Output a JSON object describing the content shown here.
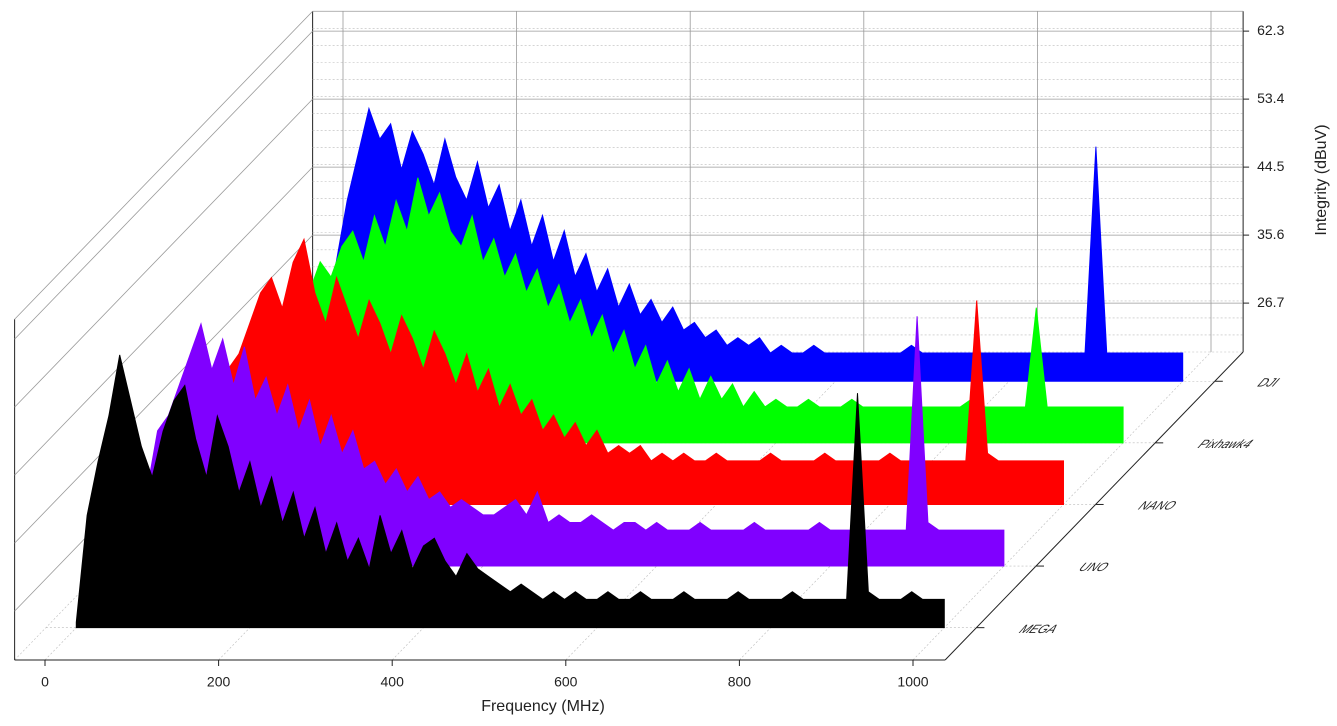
{
  "chart_data": {
    "type": "waterfall",
    "xlabel": "Frequency (MHz)",
    "ylabel": "Integrity (dBuV)",
    "xlim": [
      -35,
      1037
    ],
    "xticks": [
      0,
      200,
      400,
      600,
      800,
      1000
    ],
    "ylim": [
      20.3,
      64.9
    ],
    "yticks": [
      26.7,
      35.6,
      44.5,
      53.4,
      62.3
    ],
    "grid": true,
    "x": [
      0,
      12.5,
      25,
      37.5,
      50,
      62.5,
      75,
      87.5,
      100,
      112.5,
      125,
      137.5,
      150,
      162.5,
      175,
      187.5,
      200,
      212.5,
      225,
      237.5,
      250,
      262.5,
      275,
      287.5,
      300,
      312.5,
      325,
      337.5,
      350,
      362.5,
      375,
      387.5,
      400,
      412.5,
      425,
      437.5,
      450,
      462.5,
      475,
      487.5,
      500,
      512.5,
      525,
      537.5,
      550,
      562.5,
      575,
      587.5,
      600,
      612.5,
      625,
      637.5,
      650,
      662.5,
      675,
      687.5,
      700,
      712.5,
      725,
      737.5,
      750,
      762.5,
      775,
      787.5,
      800,
      812.5,
      825,
      837.5,
      850,
      862.5,
      875,
      887.5,
      900,
      912.5,
      925,
      937.5,
      950,
      962.5,
      975,
      987.5,
      1000
    ],
    "series": [
      {
        "name": "MEGA",
        "color": "#000000",
        "values": [
          21,
          35,
          42,
          48,
          56,
          50,
          44,
          40,
          46,
          50,
          52,
          45,
          40,
          48,
          44,
          38,
          42,
          36,
          40,
          34,
          38,
          32,
          36,
          30,
          34,
          29,
          32,
          28,
          35,
          30,
          33,
          28,
          31,
          32,
          29,
          27,
          30,
          28,
          27,
          26,
          25,
          26,
          25,
          24,
          25,
          24,
          25,
          24,
          24,
          25,
          24,
          24,
          25,
          24,
          24,
          24,
          25,
          24,
          24,
          24,
          24,
          25,
          24,
          24,
          24,
          24,
          25,
          24,
          24,
          24,
          24,
          24,
          51,
          25,
          24,
          24,
          24,
          25,
          24,
          24,
          24
        ]
      },
      {
        "name": "UNO",
        "color": "#8000ff",
        "values": [
          21,
          30,
          38,
          40,
          44,
          48,
          52,
          46,
          50,
          44,
          49,
          42,
          45,
          40,
          44,
          38,
          42,
          36,
          40,
          35,
          38,
          33,
          34,
          31,
          33,
          30,
          32,
          29,
          30,
          28,
          29,
          28,
          27,
          27,
          28,
          29,
          27,
          30,
          26,
          27,
          26,
          26,
          27,
          26,
          25,
          26,
          26,
          25,
          26,
          25,
          25,
          25,
          26,
          25,
          25,
          25,
          25,
          26,
          25,
          25,
          25,
          25,
          25,
          26,
          25,
          25,
          25,
          25,
          25,
          25,
          25,
          25,
          53,
          26,
          25,
          25,
          25,
          25,
          25,
          25,
          25
        ]
      },
      {
        "name": "NANO",
        "color": "#ff0000",
        "values": [
          21,
          28,
          34,
          38,
          40,
          44,
          48,
          50,
          46,
          52,
          55,
          48,
          44,
          50,
          46,
          42,
          47,
          44,
          40,
          45,
          42,
          38,
          43,
          40,
          36,
          40,
          35,
          38,
          33,
          36,
          32,
          34,
          30,
          32,
          29,
          31,
          28,
          30,
          27,
          28,
          27,
          28,
          26,
          27,
          26,
          27,
          26,
          26,
          27,
          26,
          26,
          26,
          26,
          27,
          26,
          26,
          26,
          26,
          27,
          26,
          26,
          26,
          26,
          26,
          27,
          26,
          26,
          26,
          26,
          26,
          26,
          26,
          47,
          27,
          26,
          26,
          26,
          26,
          26,
          26,
          26
        ]
      },
      {
        "name": "Pixhawk4",
        "color": "#00ff00",
        "values": [
          21,
          26,
          30,
          34,
          38,
          40,
          44,
          42,
          46,
          48,
          44,
          50,
          46,
          52,
          48,
          55,
          50,
          53,
          48,
          46,
          50,
          44,
          47,
          42,
          45,
          40,
          43,
          38,
          41,
          36,
          39,
          34,
          37,
          32,
          35,
          30,
          33,
          28,
          31,
          27,
          30,
          26,
          29,
          26,
          28,
          25,
          27,
          25,
          26,
          25,
          25,
          26,
          25,
          25,
          25,
          26,
          25,
          25,
          25,
          25,
          25,
          25,
          25,
          25,
          25,
          25,
          26,
          25,
          25,
          25,
          25,
          25,
          38,
          25,
          25,
          25,
          25,
          25,
          25,
          25,
          25
        ]
      },
      {
        "name": "DJI",
        "color": "#0000ff",
        "values": [
          21,
          28,
          36,
          44,
          50,
          56,
          52,
          54,
          48,
          53,
          50,
          46,
          52,
          47,
          44,
          49,
          43,
          46,
          40,
          44,
          38,
          42,
          36,
          40,
          34,
          37,
          32,
          35,
          30,
          33,
          29,
          31,
          28,
          30,
          27,
          28,
          26,
          27,
          25,
          26,
          25,
          26,
          24,
          25,
          24,
          24,
          25,
          24,
          24,
          24,
          24,
          24,
          24,
          24,
          24,
          25,
          24,
          24,
          24,
          24,
          24,
          24,
          24,
          24,
          24,
          24,
          24,
          24,
          24,
          24,
          24,
          24,
          51,
          24,
          24,
          24,
          24,
          24,
          24,
          24,
          24
        ]
      }
    ]
  }
}
